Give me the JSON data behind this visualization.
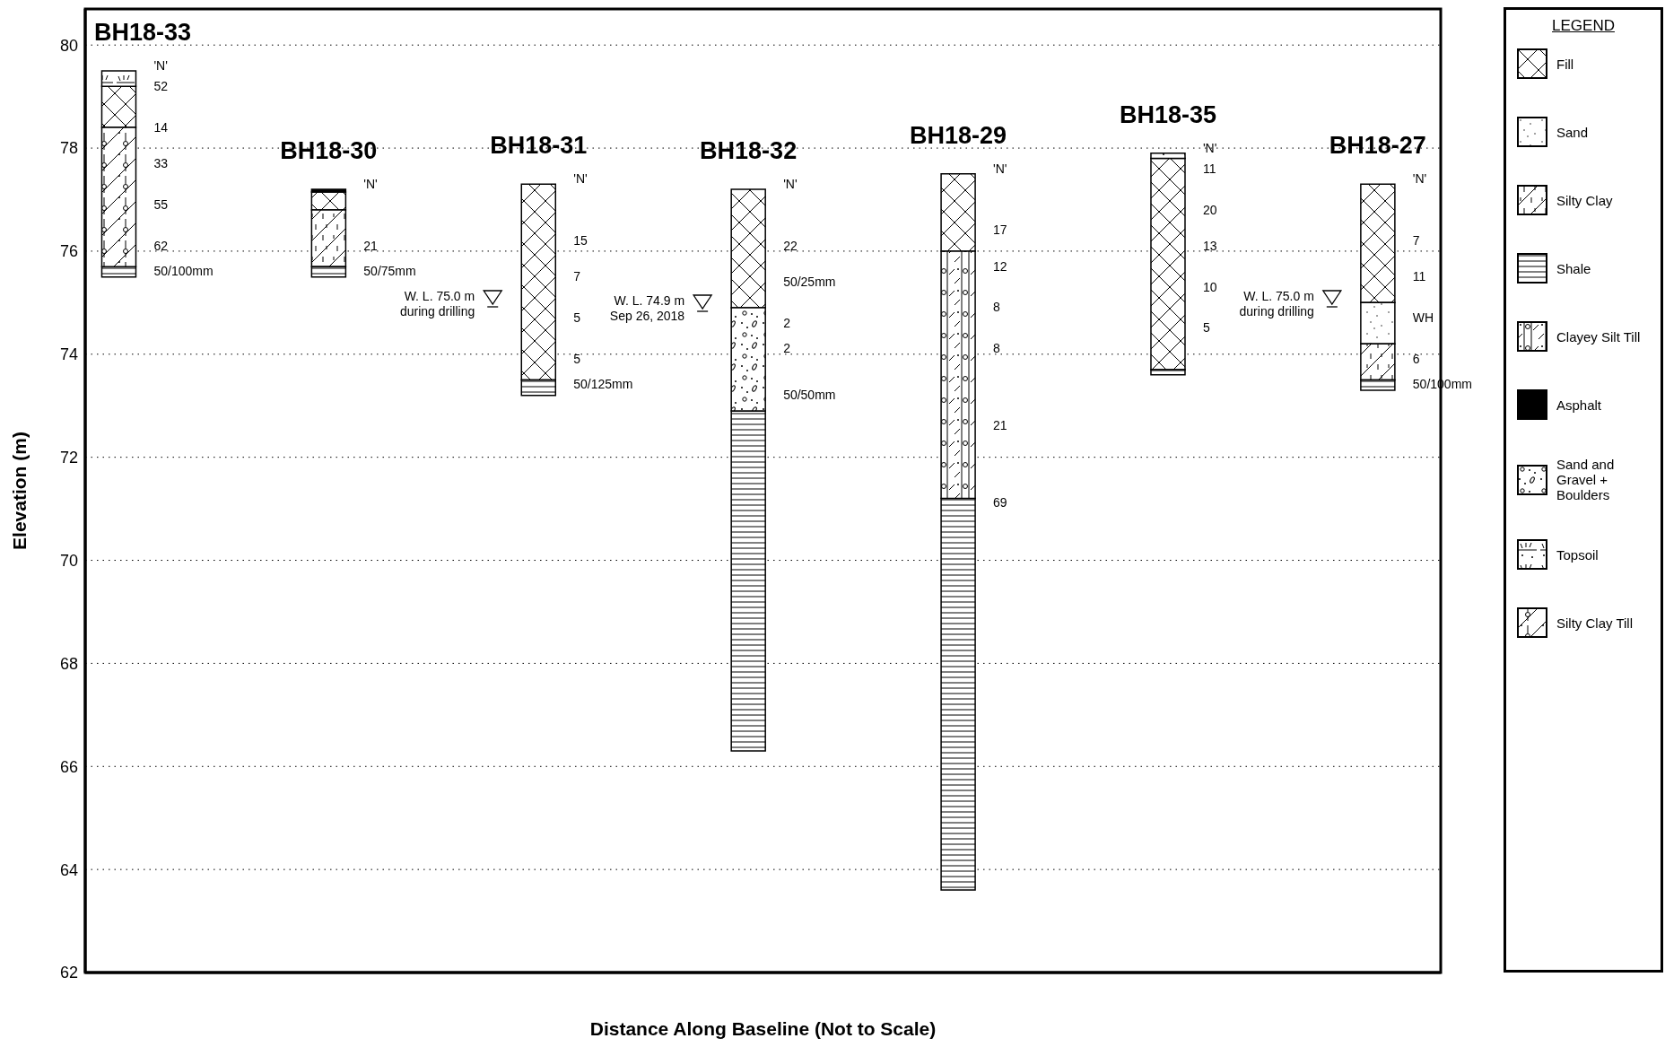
{
  "chart_data": {
    "type": "bar",
    "xlabel": "Distance Along Baseline (Not to Scale)",
    "ylabel": "Elevation (m)",
    "legend_title": "LEGEND",
    "categories": [
      "BH18-33",
      "BH18-30",
      "BH18-31",
      "BH18-32",
      "BH18-29",
      "BH18-35",
      "BH18-27"
    ],
    "series": [
      {
        "name": "Fill",
        "color": "#000000",
        "base": [
          78.4,
          76.8,
          73.5,
          74.9,
          76.0,
          73.7,
          75.0
        ],
        "values": [
          0.8,
          0.35,
          3.8,
          2.3,
          1.5,
          4.1,
          2.3
        ]
      },
      {
        "name": "Sand",
        "color": "#000000",
        "base": [
          null,
          null,
          null,
          null,
          null,
          null,
          74.2
        ],
        "values": [
          null,
          null,
          null,
          null,
          null,
          null,
          0.8
        ]
      },
      {
        "name": "Silty Clay",
        "color": "#000000",
        "base": [
          null,
          75.7,
          null,
          null,
          null,
          null,
          73.5
        ],
        "values": [
          null,
          1.1,
          null,
          null,
          null,
          null,
          0.7
        ]
      },
      {
        "name": "Shale",
        "color": "#000000",
        "base": [
          75.5,
          75.5,
          73.2,
          66.3,
          63.6,
          73.6,
          73.3
        ],
        "values": [
          0.2,
          0.2,
          0.3,
          6.6,
          7.6,
          0.1,
          0.2
        ]
      },
      {
        "name": "Clayey Silt Till",
        "color": "#000000",
        "base": [
          null,
          null,
          null,
          null,
          71.2,
          null,
          null
        ],
        "values": [
          null,
          null,
          null,
          null,
          4.8,
          null,
          null
        ]
      },
      {
        "name": "Asphalt",
        "color": "#000000",
        "base": [
          null,
          77.15,
          null,
          null,
          null,
          null,
          null
        ],
        "values": [
          null,
          0.05,
          null,
          null,
          null,
          null,
          null
        ]
      },
      {
        "name": "Sand and Gravel + Boulders",
        "color": "#000000",
        "base": [
          null,
          null,
          null,
          72.9,
          null,
          null,
          null
        ],
        "values": [
          null,
          null,
          null,
          2.0,
          null,
          null,
          null
        ]
      },
      {
        "name": "Topsoil",
        "color": "#000000",
        "base": [
          79.2,
          null,
          null,
          null,
          null,
          77.8,
          null
        ],
        "values": [
          0.3,
          null,
          null,
          null,
          null,
          0.1,
          null
        ]
      },
      {
        "name": "Silty Clay Till",
        "color": "#000000",
        "base": [
          75.7,
          null,
          null,
          null,
          null,
          null,
          null
        ],
        "values": [
          2.7,
          null,
          null,
          null,
          null,
          null,
          null
        ]
      }
    ],
    "ylim": [
      62,
      80.7
    ],
    "yticks": [
      62,
      64,
      66,
      68,
      70,
      72,
      74,
      76,
      78,
      80
    ],
    "grid": "y",
    "legend": "right",
    "annotations": [
      "'N'",
      "52",
      "14",
      "33",
      "55",
      "62",
      "50/100mm",
      "'N'",
      "21",
      "50/75mm",
      "W. L. 75.0 m\nduring drilling",
      "'N'",
      "15",
      "7",
      "5",
      "5",
      "50/125mm",
      "W. L. 74.9 m\nSep 26, 2018",
      "'N'",
      "22",
      "50/25mm",
      "2",
      "2",
      "50/50mm",
      "'N'",
      "17",
      "12",
      "8",
      "8",
      "21",
      "69",
      "'N'",
      "11",
      "20",
      "13",
      "10",
      "5",
      "W. L. 75.0 m\nduring drilling",
      "'N'",
      "7",
      "11",
      "WH",
      "6",
      "50/100mm"
    ]
  }
}
